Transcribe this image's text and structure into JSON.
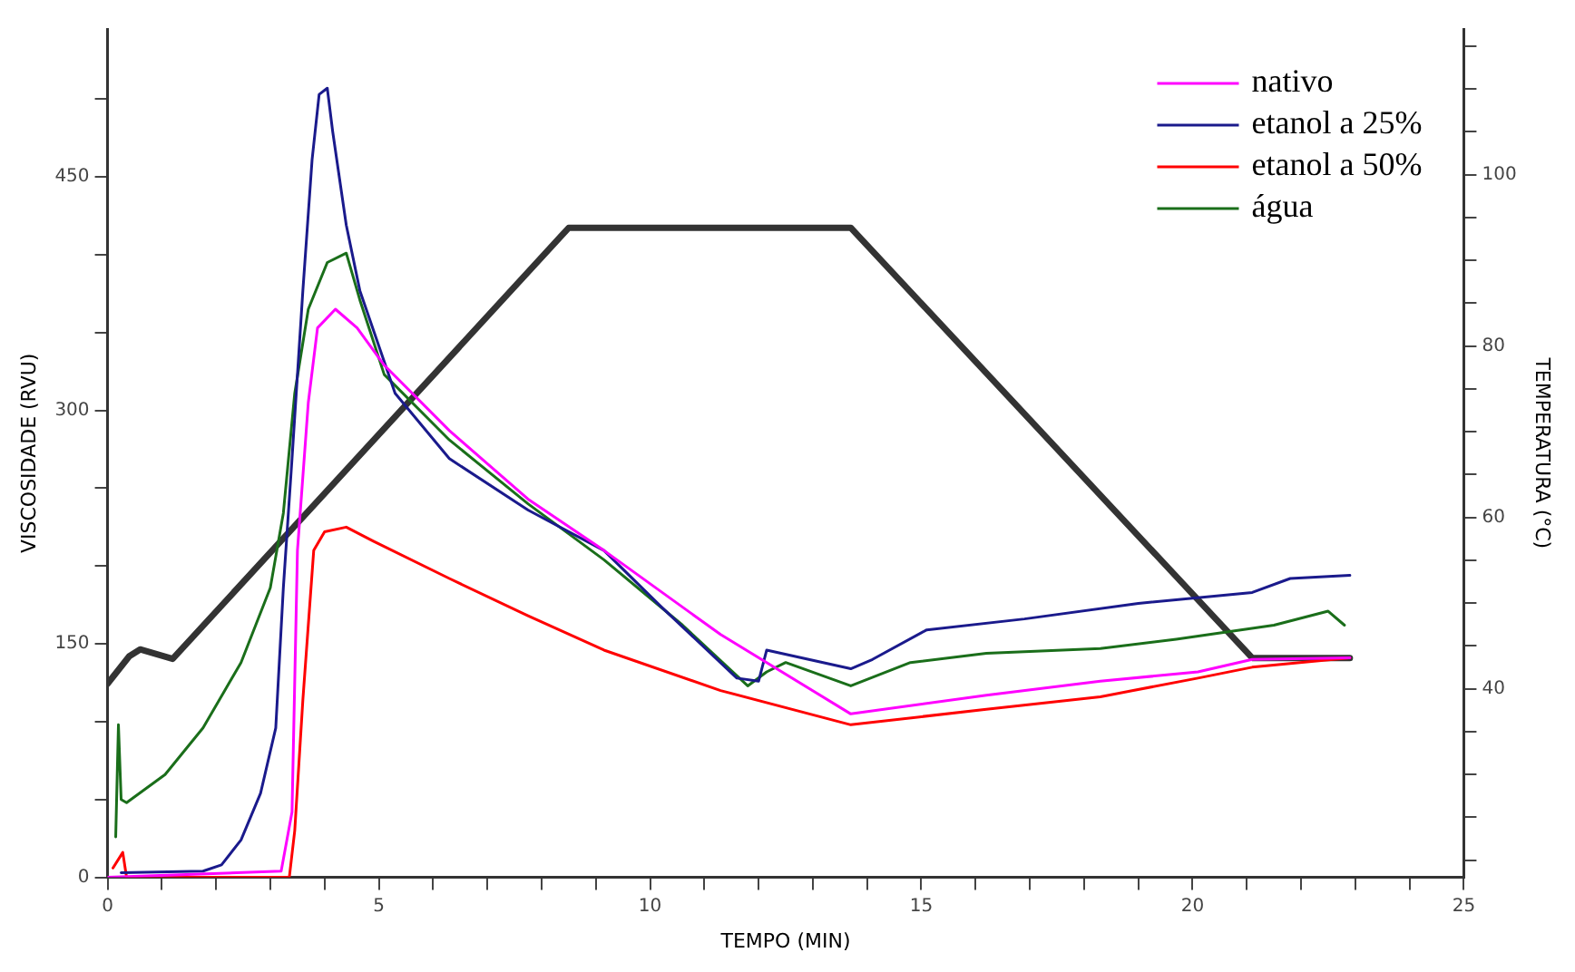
{
  "chart_data": {
    "type": "line",
    "xlabel": "TEMPO (MIN)",
    "ylabel": "VISCOSIDADE (RVU)",
    "y2label": "TEMPERATURA (°C)",
    "xlim": [
      0,
      25
    ],
    "xticks": [
      0,
      {
        "value": 1,
        "label": null
      },
      {
        "value": 2,
        "label": null
      },
      {
        "value": 3,
        "label": null
      },
      {
        "value": 4,
        "label": null
      },
      5,
      {
        "value": 6,
        "label": null
      },
      {
        "value": 7,
        "label": null
      },
      {
        "value": 8,
        "label": null
      },
      {
        "value": 9,
        "label": null
      },
      10,
      {
        "value": 11,
        "label": null
      },
      {
        "value": 12,
        "label": null
      },
      {
        "value": 13,
        "label": null
      },
      {
        "value": 14,
        "label": null
      },
      15,
      {
        "value": 16,
        "label": null
      },
      {
        "value": 17,
        "label": null
      },
      {
        "value": 18,
        "label": null
      },
      {
        "value": 19,
        "label": null
      },
      20,
      {
        "value": 21,
        "label": null
      },
      {
        "value": 22,
        "label": null
      },
      {
        "value": 23,
        "label": null
      },
      {
        "value": 24,
        "label": null
      },
      25
    ],
    "ylim": [
      0,
      545
    ],
    "yticks": [
      0,
      {
        "value": 50,
        "label": null
      },
      {
        "value": 100,
        "label": null
      },
      150,
      {
        "value": 200,
        "label": null
      },
      {
        "value": 250,
        "label": null
      },
      300,
      {
        "value": 350,
        "label": null
      },
      {
        "value": 400,
        "label": null
      },
      450,
      {
        "value": 500,
        "label": null
      }
    ],
    "y2lim": [
      18,
      117
    ],
    "y2ticks": [
      {
        "value": 20,
        "label": null
      },
      {
        "value": 25,
        "label": null
      },
      {
        "value": 30,
        "label": null
      },
      {
        "value": 35,
        "label": null
      },
      40,
      {
        "value": 45,
        "label": null
      },
      {
        "value": 50,
        "label": null
      },
      {
        "value": 55,
        "label": null
      },
      60,
      {
        "value": 65,
        "label": null
      },
      {
        "value": 70,
        "label": null
      },
      {
        "value": 75,
        "label": null
      },
      80,
      {
        "value": 85,
        "label": null
      },
      {
        "value": 90,
        "label": null
      },
      {
        "value": 95,
        "label": null
      },
      100,
      {
        "value": 105,
        "label": null
      },
      {
        "value": 110,
        "label": null
      },
      {
        "value": 115,
        "label": null
      }
    ],
    "legend": "top right",
    "marker": "none",
    "line_style": "solid",
    "series": [
      {
        "name": "nativo",
        "color": "#ff00ff",
        "x": [
          0,
          3.2,
          3.4,
          3.5,
          3.7,
          3.87,
          4.2,
          4.6,
          5.1,
          6.3,
          7.75,
          9.15,
          11.3,
          13.7,
          16.2,
          18.3,
          20.1,
          21.1,
          22.9
        ],
        "values": [
          0,
          4,
          42,
          210,
          305,
          353,
          365,
          353,
          329,
          287,
          243,
          210,
          156,
          105,
          117,
          126,
          132,
          140,
          141
        ]
      },
      {
        "name": "etanol a 25%",
        "color": "#1a1a8c",
        "x": [
          0.25,
          1.76,
          2.1,
          2.46,
          2.82,
          3.1,
          3.24,
          3.4,
          3.6,
          3.77,
          3.9,
          4.05,
          4.15,
          4.4,
          4.65,
          5.3,
          6.3,
          7.75,
          9.15,
          10.2,
          11.6,
          12.0,
          12.15,
          13.7,
          14.1,
          15.1,
          16.9,
          19.0,
          21.1,
          21.8,
          22.9
        ],
        "values": [
          3,
          4,
          8,
          24,
          54,
          96,
          186,
          269,
          377,
          461,
          503,
          507,
          479,
          419,
          377,
          311,
          269,
          236,
          210,
          174,
          128,
          126,
          146,
          134,
          140,
          159,
          166,
          176,
          183,
          192,
          194
        ]
      },
      {
        "name": "etanol a 50%",
        "color": "#ff0000",
        "x": [
          0.1,
          0.28,
          0.35,
          3.35,
          3.45,
          3.6,
          3.8,
          4.0,
          4.4,
          4.9,
          6.3,
          7.75,
          9.15,
          11.3,
          13.7,
          16.2,
          18.3,
          20.1,
          21.1,
          22.9
        ],
        "values": [
          6,
          16,
          0,
          0,
          30,
          114,
          210,
          222,
          225,
          216,
          192,
          168,
          146,
          120,
          98,
          108,
          116,
          128,
          135,
          141
        ]
      },
      {
        "name": "água",
        "color": "#1a6e1a",
        "x": [
          0.15,
          0.2,
          0.25,
          0.35,
          1.06,
          1.76,
          2.46,
          3.0,
          3.24,
          3.45,
          3.7,
          4.05,
          4.4,
          4.65,
          5.1,
          6.3,
          7.75,
          9.15,
          10.6,
          11.8,
          12.15,
          12.5,
          13.7,
          14.8,
          16.2,
          18.3,
          19.7,
          21.5,
          22.5,
          22.8
        ],
        "values": [
          26,
          98,
          50,
          48,
          66,
          96,
          138,
          186,
          234,
          311,
          365,
          395,
          401,
          371,
          323,
          281,
          240,
          204,
          162,
          123,
          132,
          138,
          123,
          138,
          144,
          147,
          153,
          162,
          171,
          162
        ]
      },
      {
        "axis": "y2",
        "color": "#333333",
        "x": [
          0,
          0.4,
          0.6,
          1.2,
          8.5,
          13.7,
          21.1,
          22.9
        ],
        "values": [
          40.6,
          43.8,
          44.6,
          43.5,
          93.8,
          93.8,
          43.6,
          43.6
        ]
      }
    ]
  }
}
